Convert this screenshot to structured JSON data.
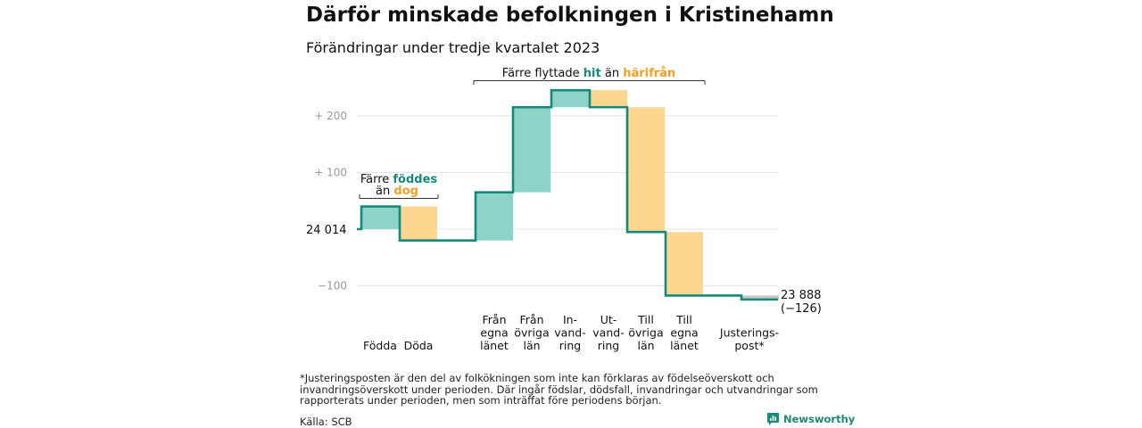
{
  "title": "Därför minskade befolkningen i Kristinehamn",
  "subtitle": "Förändringar under tredje kvartalet 2023",
  "colors": {
    "positive": "#8dd3c7",
    "negative": "#fdd68f",
    "line": "#15897a",
    "adjust": "#c8c8c8",
    "teal_text": "#15897a",
    "orange_text": "#f2a024"
  },
  "chart_data": {
    "type": "waterfall",
    "baseline": 24014,
    "end_value": 23888,
    "end_label": "23 888",
    "end_change_label": "(−126)",
    "start_label": "24  014",
    "y_ticks": [
      {
        "value": 200,
        "label": "+  200"
      },
      {
        "value": 100,
        "label": "+  100"
      },
      {
        "value": -100,
        "label": "−100"
      }
    ],
    "ylim": [
      -130,
      250
    ],
    "steps": [
      {
        "label_lines": [
          "Födda"
        ],
        "change": 40
      },
      {
        "label_lines": [
          "Döda"
        ],
        "change": -60
      },
      {
        "label_lines": [
          "Från",
          "egna",
          "länet"
        ],
        "change": 85
      },
      {
        "label_lines": [
          "Från",
          "övriga",
          "län"
        ],
        "change": 150
      },
      {
        "label_lines": [
          "In-",
          "vand-",
          "ring"
        ],
        "change": 30
      },
      {
        "label_lines": [
          "Ut-",
          "vand-",
          "ring"
        ],
        "change": -30
      },
      {
        "label_lines": [
          "Till",
          "övriga",
          "län"
        ],
        "change": -220
      },
      {
        "label_lines": [
          "Till",
          "egna",
          "länet"
        ],
        "change": -112
      },
      {
        "label_lines": [
          "Justerings-",
          "post*"
        ],
        "change": -7
      }
    ],
    "annotations": {
      "births": {
        "line1": "Färre ",
        "line1_hl": "föddes",
        "line2": "än ",
        "line2_hl": "dog"
      },
      "migration": {
        "prefix": "Färre flyttade ",
        "hl1": "hit",
        "mid": "  än ",
        "hl2": "härifrån"
      }
    }
  },
  "footnote": "*Justeringsposten är den del av folkökningen som inte kan förklaras av födelseöverskott och invandringsöverskott under perioden. Där ingår födslar, dödsfall, invandringar och utvandringar som rapporterats under perioden, men som inträffat före periodens början.",
  "source": "Källa: SCB",
  "brand": "Newsworthy"
}
